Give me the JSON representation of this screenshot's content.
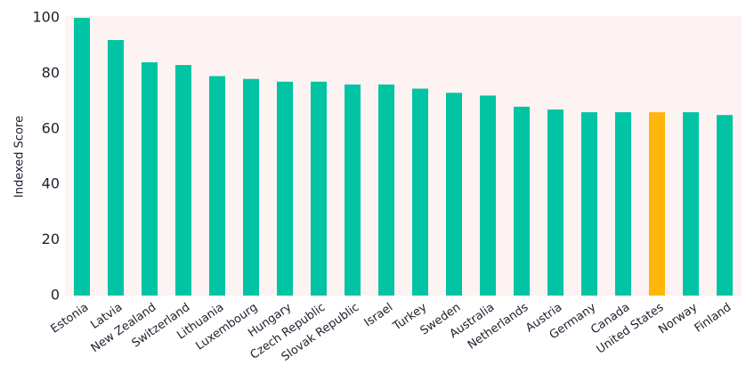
{
  "chart_data": {
    "type": "bar",
    "y_label": "Indexed Score",
    "categories": [
      "Estonia",
      "Latvia",
      "New Zealand",
      "Switzerland",
      "Lithuania",
      "Luxembourg",
      "Hungary",
      "Czech Republic",
      "Slovak Republic",
      "Israel",
      "Turkey",
      "Sweden",
      "Australia",
      "Netherlands",
      "Austria",
      "Germany",
      "Canada",
      "United States",
      "Norway",
      "Finland"
    ],
    "values": [
      100,
      92,
      84,
      83,
      79,
      78,
      77,
      77,
      76,
      76,
      74.5,
      73,
      72,
      68,
      67,
      66,
      66,
      66,
      66,
      65
    ],
    "colors": [
      "#00c4a4",
      "#00c4a4",
      "#00c4a4",
      "#00c4a4",
      "#00c4a4",
      "#00c4a4",
      "#00c4a4",
      "#00c4a4",
      "#00c4a4",
      "#00c4a4",
      "#00c4a4",
      "#00c4a4",
      "#00c4a4",
      "#00c4a4",
      "#00c4a4",
      "#00c4a4",
      "#00c4a4",
      "#ffb60a",
      "#00c4a4",
      "#00c4a4"
    ],
    "ylim": [
      0,
      100
    ],
    "yticks": [
      0,
      20,
      40,
      60,
      80,
      100
    ],
    "grid": false
  }
}
